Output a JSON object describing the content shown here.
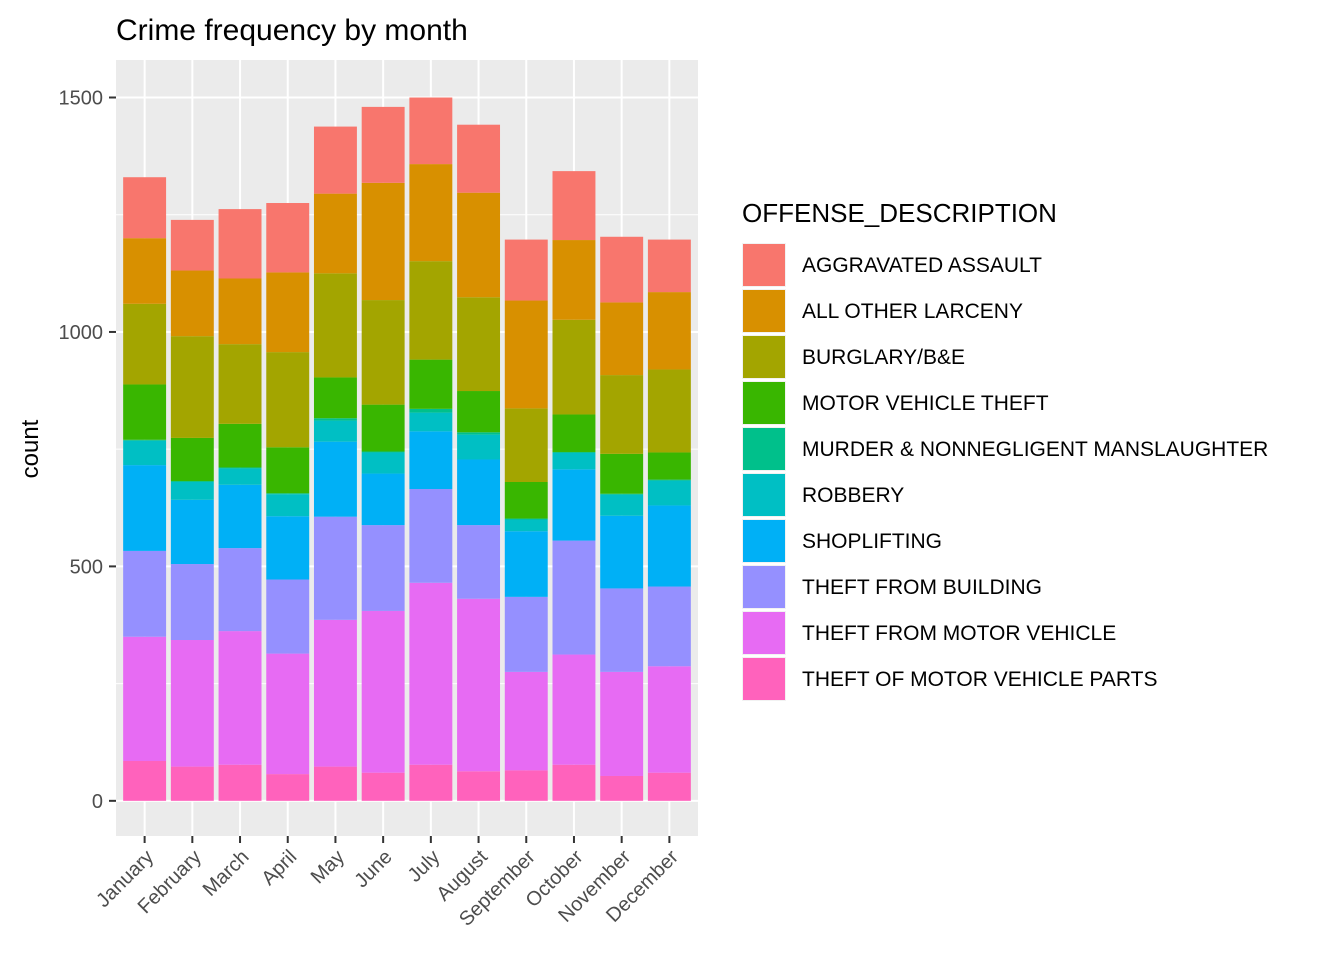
{
  "chart_data": {
    "type": "bar",
    "stacked": true,
    "title": "Crime frequency by month",
    "xlabel": "",
    "ylabel": "count",
    "ylim": [
      -75,
      1580
    ],
    "yticks": [
      0,
      500,
      1000,
      1500
    ],
    "grid": true,
    "legend_position": "right",
    "legend_title": "OFFENSE_DESCRIPTION",
    "categories": [
      "January",
      "February",
      "March",
      "April",
      "May",
      "June",
      "July",
      "August",
      "September",
      "October",
      "November",
      "December"
    ],
    "series": [
      {
        "name": "THEFT OF MOTOR VEHICLE PARTS",
        "color": "#FF62BC",
        "values": [
          85,
          73,
          77,
          57,
          73,
          60,
          77,
          63,
          65,
          77,
          53,
          60
        ]
      },
      {
        "name": "THEFT FROM MOTOR VEHICLE",
        "color": "#E76BF3",
        "values": [
          265,
          270,
          285,
          257,
          313,
          345,
          388,
          368,
          210,
          235,
          222,
          227
        ]
      },
      {
        "name": "THEFT FROM BUILDING",
        "color": "#9590FF",
        "values": [
          183,
          162,
          177,
          158,
          220,
          183,
          200,
          157,
          160,
          243,
          178,
          170
        ]
      },
      {
        "name": "SHOPLIFTING",
        "color": "#00B0F6",
        "values": [
          183,
          137,
          135,
          135,
          160,
          110,
          123,
          140,
          140,
          152,
          155,
          173
        ]
      },
      {
        "name": "ROBBERY",
        "color": "#00BFC4",
        "values": [
          52,
          38,
          35,
          47,
          45,
          45,
          40,
          53,
          25,
          35,
          45,
          53
        ]
      },
      {
        "name": "MURDER & NONNEGLIGENT MANSLAUGHTER",
        "color": "#00C08B",
        "values": [
          2,
          2,
          2,
          2,
          5,
          2,
          8,
          5,
          2,
          2,
          2,
          2
        ]
      },
      {
        "name": "MOTOR VEHICLE THEFT",
        "color": "#39B600",
        "values": [
          118,
          92,
          93,
          98,
          87,
          100,
          105,
          88,
          78,
          80,
          85,
          58
        ]
      },
      {
        "name": "BURGLARY/B&E",
        "color": "#A3A500",
        "values": [
          172,
          217,
          170,
          203,
          222,
          223,
          210,
          200,
          157,
          202,
          168,
          177
        ]
      },
      {
        "name": "ALL OTHER LARCENY",
        "color": "#D89000",
        "values": [
          140,
          140,
          140,
          170,
          170,
          250,
          207,
          223,
          230,
          170,
          155,
          165
        ]
      },
      {
        "name": "AGGRAVATED ASSAULT",
        "color": "#F8766D",
        "values": [
          130,
          108,
          148,
          148,
          143,
          162,
          142,
          145,
          130,
          147,
          140,
          112
        ]
      }
    ]
  }
}
